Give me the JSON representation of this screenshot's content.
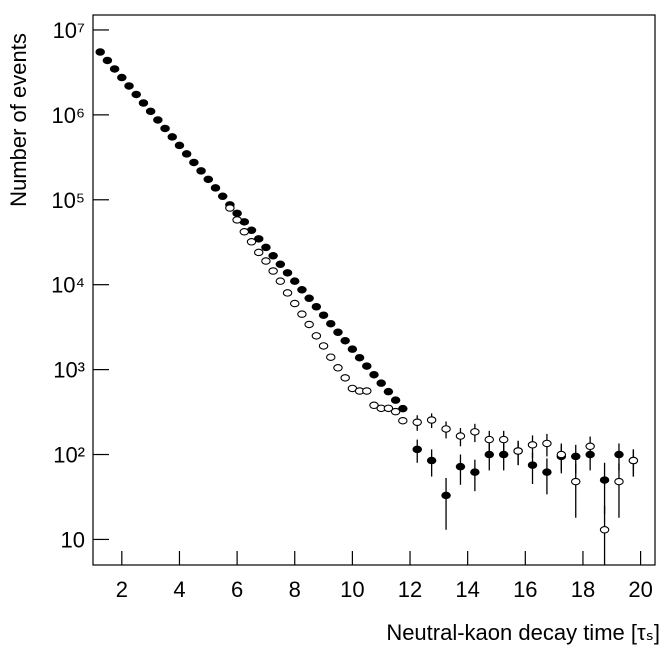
{
  "chart_data": {
    "type": "scatter",
    "x_label": "Neutral-kaon decay time [τₛ]",
    "y_label": "Number of events",
    "log_y": true,
    "xlim": [
      1,
      20.5
    ],
    "ylim": [
      5,
      15000000
    ],
    "xticks": [
      2,
      4,
      6,
      8,
      10,
      12,
      14,
      16,
      18,
      20
    ],
    "yticks": [
      10,
      {
        "value": 100,
        "label": "10²"
      },
      {
        "value": 1000,
        "label": "10³"
      },
      {
        "value": 10000,
        "label": "10⁴"
      },
      {
        "value": 100000,
        "label": "10⁵"
      },
      {
        "value": 1000000,
        "label": "10⁶"
      },
      {
        "value": 10000000,
        "label": "10⁷"
      }
    ],
    "series": [
      {
        "marker": "filled",
        "color": "#000000",
        "x": [
          1.25,
          1.5,
          1.75,
          2,
          2.25,
          2.5,
          2.75,
          3,
          3.25,
          3.5,
          3.75,
          4,
          4.25,
          4.5,
          4.75,
          5,
          5.25,
          5.5,
          5.75,
          6,
          6.25,
          6.5,
          6.75,
          7,
          7.25,
          7.5,
          7.75,
          8,
          8.25,
          8.5,
          8.75,
          9,
          9.25,
          9.5,
          9.75,
          10,
          10.25,
          10.5,
          10.75,
          11,
          11.25,
          11.5,
          11.75,
          12.25,
          12.75,
          13.25,
          13.75,
          14.25,
          14.75,
          15.25,
          15.75,
          16.25,
          16.75,
          17.25,
          17.75,
          18.25,
          18.75,
          19.25,
          19.75
        ],
        "values": [
          5500000,
          4370000,
          3470000,
          2750000,
          2190000,
          1740000,
          1380000,
          1100000,
          871000,
          692000,
          550000,
          437000,
          347000,
          275000,
          219000,
          174000,
          138000,
          110000,
          87100,
          69200,
          55000,
          43700,
          34700,
          27500,
          21900,
          17400,
          13800,
          11000,
          8710,
          6920,
          5500,
          4370,
          3470,
          2750,
          2190,
          1740,
          1380,
          1100,
          871,
          692,
          550,
          437,
          347,
          115,
          85,
          33,
          72,
          62,
          100,
          100,
          110,
          75,
          62,
          95,
          95,
          100,
          50,
          100,
          85
        ],
        "errors": [
          null,
          null,
          null,
          null,
          null,
          null,
          null,
          null,
          null,
          null,
          null,
          null,
          null,
          null,
          null,
          null,
          null,
          null,
          null,
          null,
          null,
          null,
          null,
          null,
          null,
          null,
          null,
          null,
          null,
          null,
          null,
          null,
          null,
          null,
          null,
          null,
          null,
          null,
          null,
          null,
          null,
          null,
          null,
          35,
          30,
          20,
          28,
          25,
          35,
          35,
          35,
          30,
          28,
          35,
          35,
          35,
          30,
          35,
          30
        ]
      },
      {
        "marker": "open",
        "color": "#000000",
        "x": [
          5.75,
          6,
          6.25,
          6.5,
          6.75,
          7,
          7.25,
          7.5,
          7.75,
          8,
          8.25,
          8.5,
          8.75,
          9,
          9.25,
          9.5,
          9.75,
          10,
          10.25,
          10.5,
          10.75,
          11,
          11.25,
          11.5,
          11.75,
          12.25,
          12.75,
          13.25,
          13.75,
          14.25,
          14.75,
          15.25,
          15.75,
          16.25,
          16.75,
          17.25,
          17.75,
          18.25,
          18.75,
          19.25,
          19.75
        ],
        "values": [
          80000,
          58000,
          42000,
          32000,
          24000,
          19000,
          14500,
          11000,
          8000,
          6000,
          4500,
          3400,
          2500,
          1900,
          1400,
          1050,
          800,
          600,
          560,
          560,
          380,
          350,
          350,
          320,
          250,
          240,
          255,
          200,
          165,
          185,
          150,
          150,
          110,
          130,
          135,
          100,
          48,
          125,
          13,
          48,
          85
        ],
        "errors": [
          null,
          null,
          null,
          null,
          null,
          null,
          null,
          null,
          null,
          null,
          null,
          null,
          null,
          null,
          null,
          null,
          null,
          null,
          null,
          null,
          null,
          null,
          null,
          null,
          null,
          50,
          50,
          45,
          40,
          45,
          40,
          40,
          35,
          38,
          40,
          35,
          30,
          38,
          12,
          30,
          30
        ]
      }
    ]
  }
}
